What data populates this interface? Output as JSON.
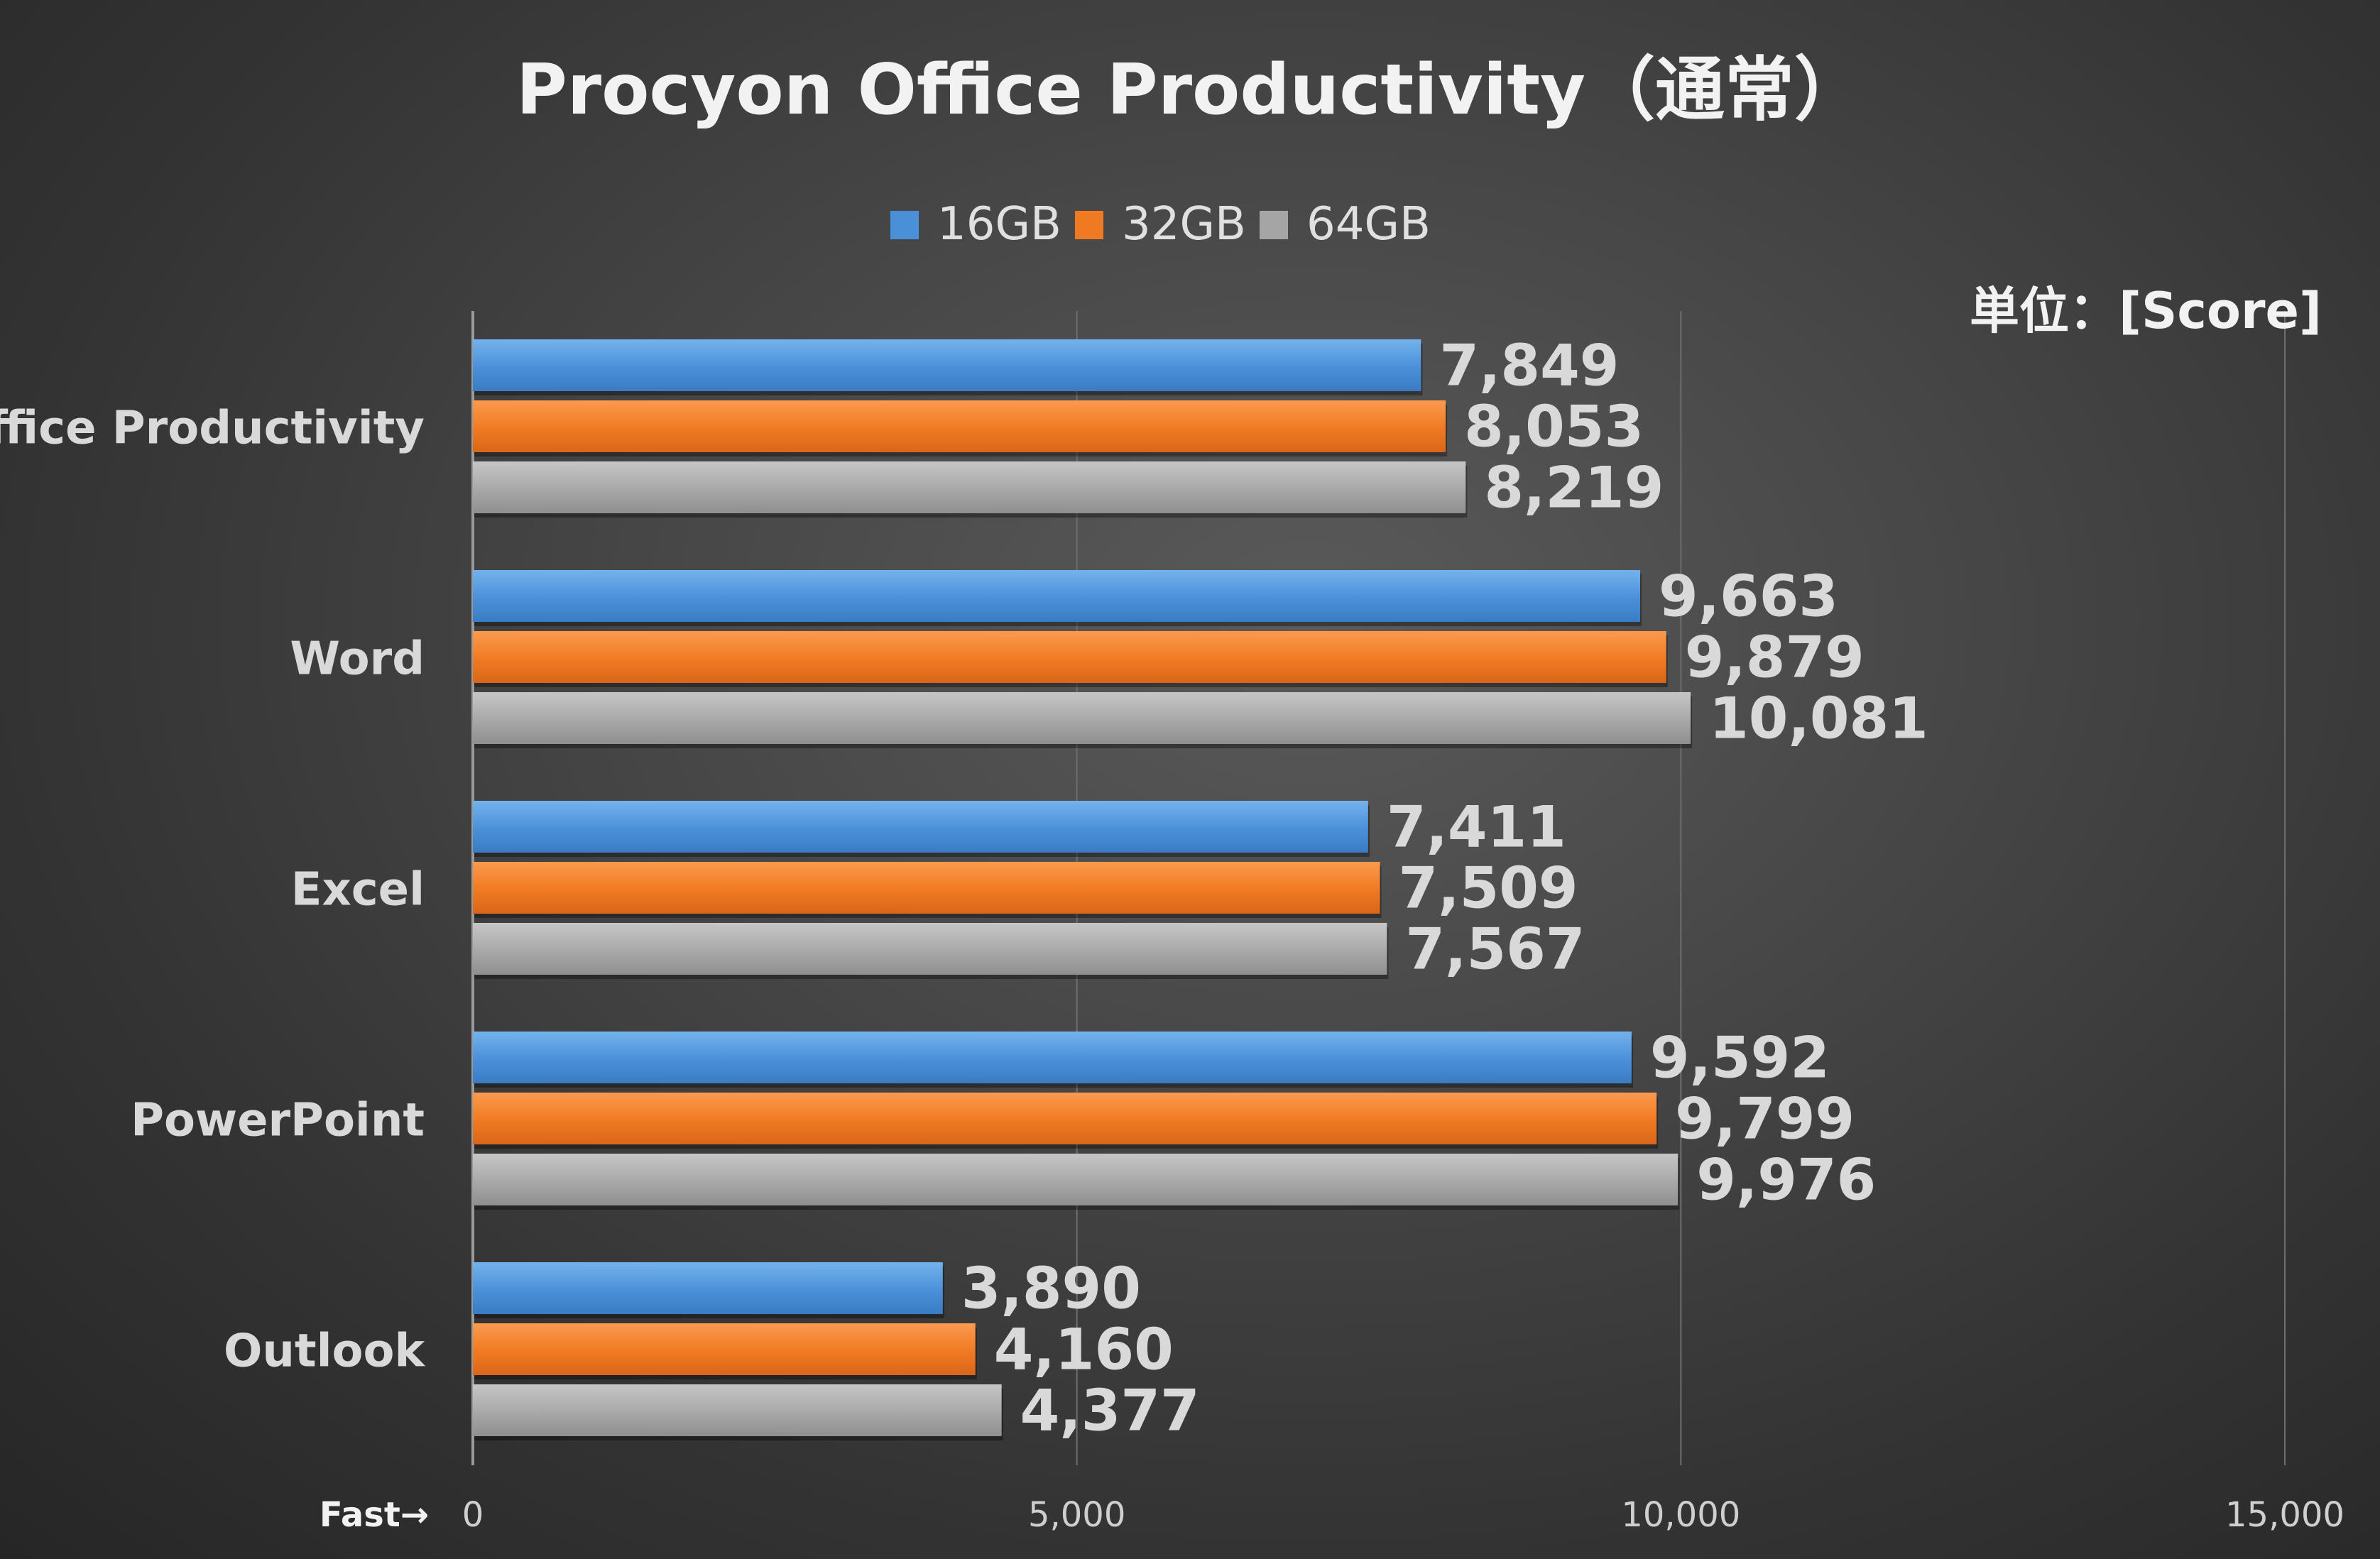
{
  "chart_data": {
    "type": "bar",
    "orientation": "horizontal",
    "title": "Procyon Office Productivity（通常）",
    "unit_label": "単位：[Score]",
    "axis_note": "Fast→",
    "categories": [
      "Office Productivity",
      "Word",
      "Excel",
      "PowerPoint",
      "Outlook"
    ],
    "series": [
      {
        "name": "16GB",
        "color": "#4a90d9",
        "values": [
          7849,
          9663,
          7411,
          9592,
          3890
        ]
      },
      {
        "name": "32GB",
        "color": "#f07a22",
        "values": [
          8053,
          9879,
          7509,
          9799,
          4160
        ]
      },
      {
        "name": "64GB",
        "color": "#a5a5a5",
        "values": [
          8219,
          10081,
          7567,
          9976,
          4377
        ]
      }
    ],
    "data_labels": [
      [
        "7,849",
        "9,663",
        "7,411",
        "9,592",
        "3,890"
      ],
      [
        "8,053",
        "9,879",
        "7,509",
        "9,799",
        "4,160"
      ],
      [
        "8,219",
        "10,081",
        "7,567",
        "9,976",
        "4,377"
      ]
    ],
    "xlim": [
      0,
      15000
    ],
    "xticks": [
      0,
      5000,
      10000,
      15000
    ],
    "xtick_labels": [
      "0",
      "5,000",
      "10,000",
      "15,000"
    ],
    "legend_position": "top-center",
    "grid": true
  }
}
